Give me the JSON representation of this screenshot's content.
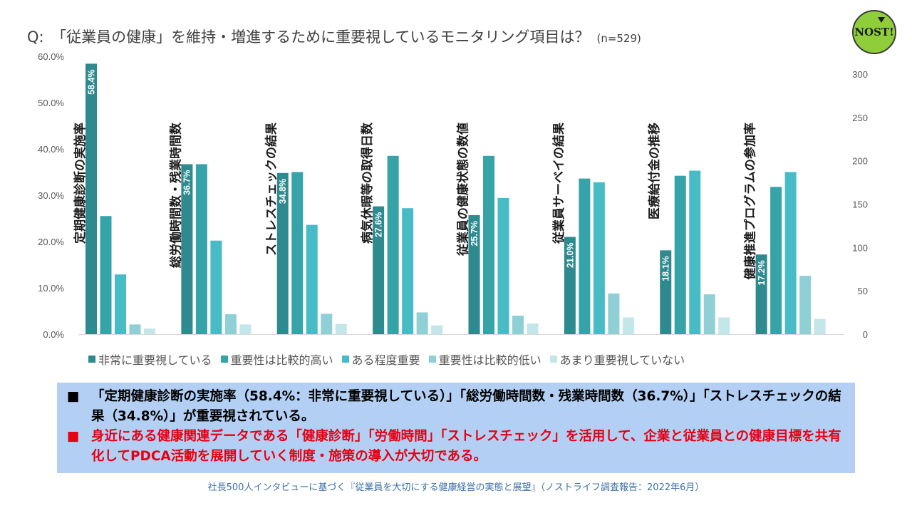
{
  "header": {
    "question": "Q:　「従業員の健康」を維持・増進するために重要視しているモニタリング項目は？",
    "n_label": "(n=529)",
    "logo_text": "NOST!"
  },
  "chart_data": {
    "type": "bar",
    "categories": [
      "定期健康診断の実施率",
      "総労働時間数・残業時間数",
      "ストレスチェックの結果",
      "病気休暇等の取得日数",
      "従業員の健康状態の数値",
      "従業員サーベイの結果",
      "医療給付金の推移",
      "健康推進プログラムの参加率"
    ],
    "series": [
      {
        "name": "非常に重要視している",
        "color": "#2e8a8e",
        "values": [
          58.4,
          36.7,
          34.8,
          27.6,
          25.7,
          21.0,
          18.1,
          17.2
        ]
      },
      {
        "name": "重要性は比較的高い",
        "color": "#36a3a8",
        "values": [
          25.5,
          36.7,
          35.0,
          38.5,
          38.5,
          33.6,
          34.2,
          31.8
        ]
      },
      {
        "name": "ある程度重要",
        "color": "#47bcc6",
        "values": [
          12.9,
          20.2,
          23.6,
          27.2,
          29.4,
          32.8,
          35.3,
          35.0
        ]
      },
      {
        "name": "重要性は比較的低い",
        "color": "#8fd0d6",
        "values": [
          2.1,
          4.3,
          4.4,
          4.7,
          4.0,
          8.8,
          8.6,
          12.6
        ]
      },
      {
        "name": "あまり重要視していない",
        "color": "#c2e6e9",
        "values": [
          1.2,
          2.1,
          2.2,
          1.9,
          2.3,
          3.6,
          3.6,
          3.3
        ]
      }
    ],
    "data_labels": [
      "58.4%",
      "36.7%",
      "34.8%",
      "27.6%",
      "25.7%",
      "21.0%",
      "18.1%",
      "17.2%"
    ],
    "y_left": {
      "min": 0,
      "max": 60,
      "ticks": [
        0,
        10,
        20,
        30,
        40,
        50,
        60
      ],
      "tick_labels": [
        "0.0%",
        "10.0%",
        "20.0%",
        "30.0%",
        "40.0%",
        "50.0%",
        "60.0%"
      ]
    },
    "y_right": {
      "min": 0,
      "max": 300,
      "ticks": [
        0,
        50,
        100,
        150,
        200,
        250,
        300
      ],
      "tick_labels": [
        "0",
        "50",
        "100",
        "150",
        "200",
        "250",
        "300"
      ]
    },
    "legend_position": "bottom",
    "grid": false
  },
  "summary": {
    "bullet": "■",
    "line1": "「定期健康診断の実施率（58.4%：非常に重要視している）」「総労働時間数・残業時間数（36.7%）」「ストレスチェックの結果（34.8%）」が重要視されている。",
    "line2": "身近にある健康関連データである「健康診断」「労働時間」「ストレスチェック」を活用して、企業と従業員との健康目標を共有化してPDCA活動を展開していく制度・施策の導入が大切である。"
  },
  "footer": "社長500人インタビューに基づく『従業員を大切にする健康経営の実態と展望』（ノストライフ調査報告：2022年6月）"
}
